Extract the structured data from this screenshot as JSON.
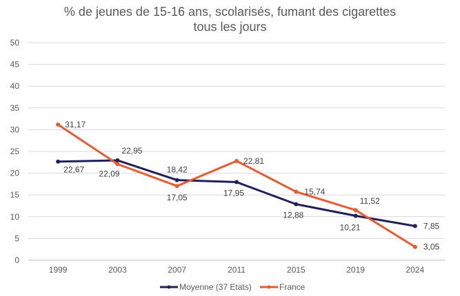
{
  "chart_data": {
    "type": "line",
    "title": "% de jeunes de 15-16 ans, scolarisés, fumant des cigarettes",
    "subtitle": "tous les jours",
    "xlabel": "",
    "ylabel": "",
    "categories": [
      "1999",
      "2003",
      "2007",
      "2011",
      "2015",
      "2019",
      "2024"
    ],
    "ylim": [
      0,
      50
    ],
    "yticks": [
      "0",
      "5",
      "10",
      "15",
      "20",
      "25",
      "30",
      "35",
      "40",
      "45",
      "50"
    ],
    "grid": true,
    "legend_position": "bottom",
    "series": [
      {
        "name": "Moyenne (37 Etats)",
        "color": "#1f1f5c",
        "values": [
          22.67,
          22.95,
          18.42,
          17.95,
          12.88,
          10.21,
          7.85
        ],
        "labels": [
          "22,67",
          "22,95",
          "18,42",
          "17,95",
          "12,88",
          "10,21",
          "7,85"
        ]
      },
      {
        "name": "France",
        "color": "#ea5a2e",
        "values": [
          31.17,
          22.09,
          17.05,
          22.81,
          15.74,
          11.52,
          3.05
        ],
        "labels": [
          "31,17",
          "22,09",
          "17,05",
          "22,81",
          "15,74",
          "11,52",
          "3,05"
        ]
      }
    ]
  }
}
